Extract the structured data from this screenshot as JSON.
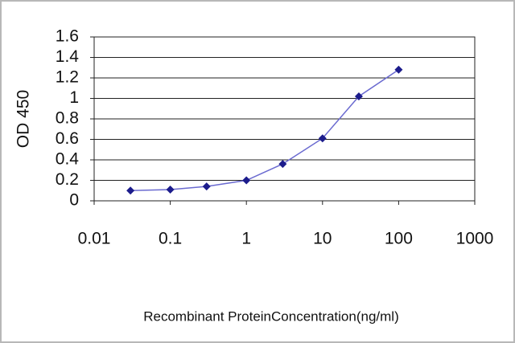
{
  "chart_data": {
    "type": "line",
    "x_label": "Recombinant ProteinConcentration(ng/ml)",
    "y_label": "OD 450",
    "x": [
      0.03,
      0.1,
      0.3,
      1,
      3,
      10,
      30,
      100
    ],
    "values": [
      0.1,
      0.11,
      0.14,
      0.2,
      0.36,
      0.61,
      1.02,
      1.28
    ],
    "color": "#6a6ad0",
    "marker_color": "#1c1c8c",
    "xlim": [
      0.01,
      1000
    ],
    "xticks": [
      0.01,
      0.1,
      1,
      10,
      100,
      1000
    ],
    "x_log": true,
    "ylim": [
      0,
      1.6
    ],
    "yticks": [
      0,
      0.2,
      0.4,
      0.6,
      0.8,
      1,
      1.2,
      1.4,
      1.6
    ],
    "grid": true
  }
}
